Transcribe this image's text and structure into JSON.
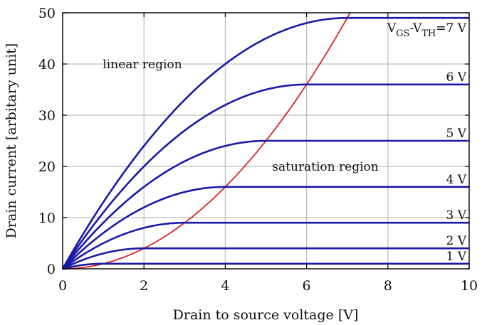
{
  "chart_data": {
    "type": "line",
    "xlabel": "Drain to source voltage [V]",
    "ylabel": "Drain current [arbitary unit]",
    "xlim": [
      0,
      10
    ],
    "ylim": [
      0,
      50
    ],
    "x_ticks": [
      "0",
      "2",
      "4",
      "6",
      "8",
      "10"
    ],
    "y_ticks": [
      "0",
      "10",
      "20",
      "30",
      "40",
      "50"
    ],
    "grid": true,
    "colors": {
      "curves": "#1a1aa6",
      "boundary": "#d62728"
    },
    "series": [
      {
        "name": "1 V",
        "vov": 1,
        "saturation_current": 1
      },
      {
        "name": "2 V",
        "vov": 2,
        "saturation_current": 4
      },
      {
        "name": "3 V",
        "vov": 3,
        "saturation_current": 9
      },
      {
        "name": "4 V",
        "vov": 4,
        "saturation_current": 16
      },
      {
        "name": "5 V",
        "vov": 5,
        "saturation_current": 25
      },
      {
        "name": "6 V",
        "vov": 6,
        "saturation_current": 36
      },
      {
        "name": "=7 V",
        "label_prefix": "V",
        "label_sub1": "GS",
        "label_dash": "-V",
        "label_sub2": "TH",
        "vov": 7,
        "saturation_current": 49
      }
    ],
    "boundary_curve": {
      "equation": "I = V^2",
      "x_range": [
        0,
        7.07
      ]
    },
    "annotations": [
      {
        "text": "linear region",
        "x": 2.9,
        "y": 40.3
      },
      {
        "text": "saturation region",
        "x": 7.4,
        "y": 19.4
      }
    ]
  }
}
